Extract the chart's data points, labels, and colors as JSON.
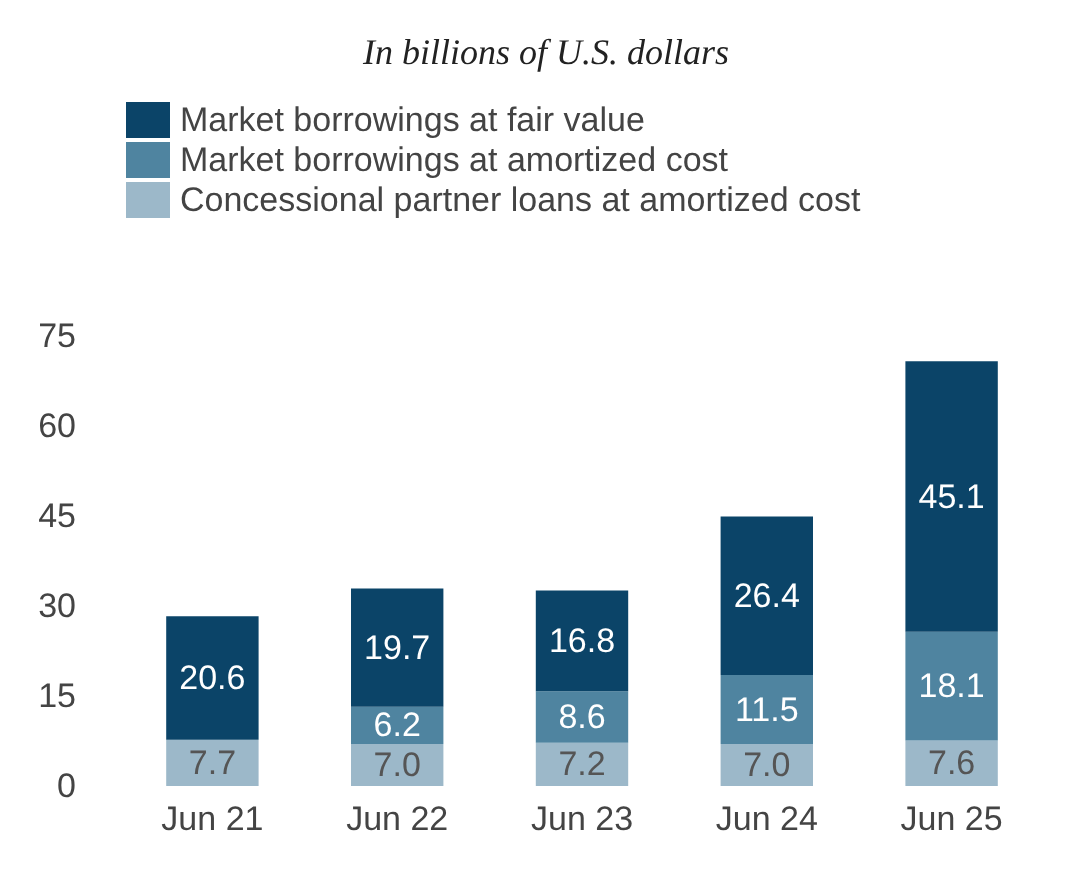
{
  "chart_data": {
    "type": "bar",
    "title": "In billions of U.S. dollars",
    "categories": [
      "Jun 21",
      "Jun 22",
      "Jun 23",
      "Jun 24",
      "Jun 25"
    ],
    "stacked": true,
    "ylim": [
      0,
      75
    ],
    "yticks": [
      0,
      15,
      30,
      45,
      60,
      75
    ],
    "grid": false,
    "legend": "top left",
    "series": [
      {
        "name": "Concessional partner loans at amortized cost",
        "color": "#9cb8c9",
        "values": [
          7.7,
          7.0,
          7.2,
          7.0,
          7.6
        ],
        "value_labels": [
          "7.7",
          "7.0",
          "7.2",
          "7.0",
          "7.6"
        ]
      },
      {
        "name": "Market borrowings at amortized cost",
        "color": "#4f84a0",
        "values": [
          null,
          6.2,
          8.6,
          11.5,
          18.1
        ],
        "value_labels": [
          null,
          "6.2",
          "8.6",
          "11.5",
          "18.1"
        ]
      },
      {
        "name": "Market borrowings at fair value",
        "color": "#0b4468",
        "values": [
          20.6,
          19.7,
          16.8,
          26.4,
          45.1
        ],
        "value_labels": [
          "20.6",
          "19.7",
          "16.8",
          "26.4",
          "45.1"
        ]
      }
    ]
  }
}
